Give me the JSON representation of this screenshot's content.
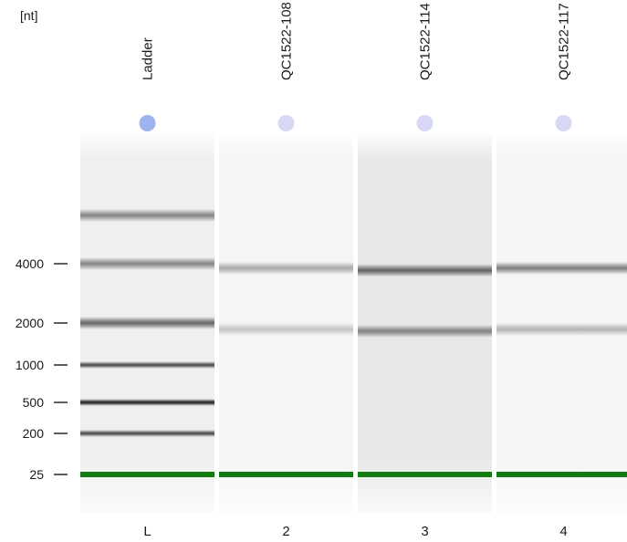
{
  "chart_data": {
    "type": "gel",
    "y_unit": "[nt]",
    "y_scale": "ladder",
    "ladder_ticks": [
      25,
      200,
      500,
      1000,
      2000,
      4000
    ],
    "lanes": [
      {
        "id": "L",
        "name": "Ladder",
        "dot_color": "#9fb3ee",
        "background": "#efefef",
        "bands": [
          {
            "size": 6000,
            "intensity": 0.5
          },
          {
            "size": 4000,
            "intensity": 0.5
          },
          {
            "size": 2000,
            "intensity": 0.65
          },
          {
            "size": 1000,
            "intensity": 0.8
          },
          {
            "size": 500,
            "intensity": 1.0
          },
          {
            "size": 200,
            "intensity": 0.8
          },
          {
            "size": 25,
            "intensity": 1.0,
            "marker": true
          }
        ]
      },
      {
        "id": "2",
        "name": "QC1522-108",
        "dot_color": "#d8d8f6",
        "background": "#f5f5f5",
        "bands": [
          {
            "size": 3800,
            "intensity": 0.35
          },
          {
            "size": 1800,
            "intensity": 0.22
          },
          {
            "size": 25,
            "intensity": 1.0,
            "marker": true
          }
        ]
      },
      {
        "id": "3",
        "name": "QC1522-114",
        "dot_color": "#d8d8f6",
        "background": "#e8e8e8",
        "bands": [
          {
            "size": 3700,
            "intensity": 0.65
          },
          {
            "size": 1750,
            "intensity": 0.5
          },
          {
            "size": 25,
            "intensity": 1.0,
            "marker": true
          }
        ]
      },
      {
        "id": "4",
        "name": "QC1522-117",
        "dot_color": "#d8d8f6",
        "background": "#f5f5f5",
        "bands": [
          {
            "size": 3800,
            "intensity": 0.55
          },
          {
            "size": 1800,
            "intensity": 0.3
          },
          {
            "size": 25,
            "intensity": 1.0,
            "marker": true
          }
        ]
      }
    ],
    "marker_color": "#147a14"
  }
}
